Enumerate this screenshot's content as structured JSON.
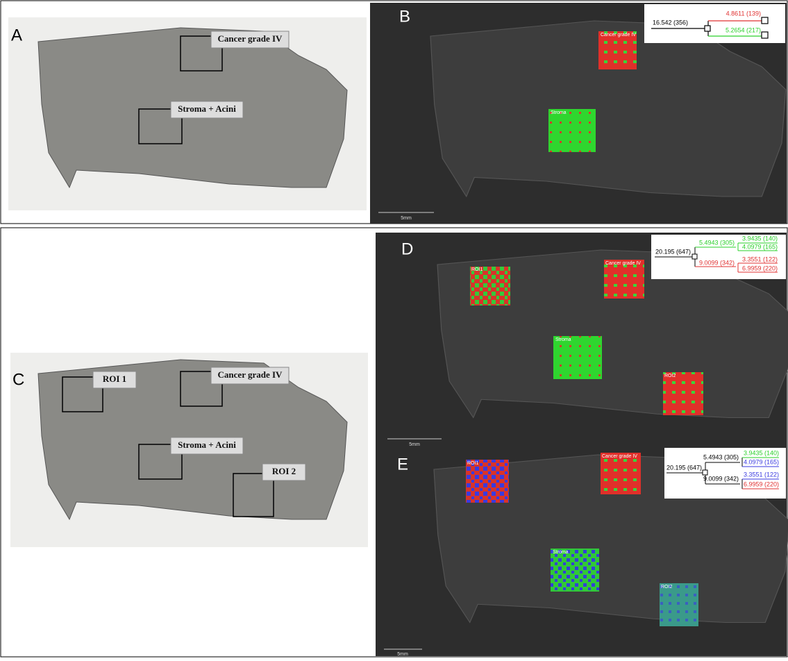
{
  "panel_a": {
    "letter": "A",
    "labels": [
      "Cancer grade IV",
      "Stroma + Acini"
    ]
  },
  "panel_b": {
    "letter": "B",
    "roi_labels": [
      "Cancer grade IV",
      "Stroma"
    ],
    "scale_bar": "5mm",
    "dendrogram": [
      "16.542 (356)",
      "4.8611 (139)",
      "5.2654 (217)"
    ]
  },
  "panel_c": {
    "letter": "C",
    "labels": [
      "ROI 1",
      "Cancer grade IV",
      "Stroma + Acini",
      "ROI 2"
    ]
  },
  "panel_d": {
    "letter": "D",
    "roi_labels": [
      "ROI1",
      "Cancer grade IV",
      "Stroma",
      "ROI2"
    ],
    "scale_bar": "5mm",
    "dendrogram": [
      "20.195 (647)",
      "5.4943 (305)",
      "9.0099 (342)",
      "3.9435 (140)",
      "4.0979 (165)",
      "3.3551 (122)",
      "6.9959 (220)"
    ]
  },
  "panel_e": {
    "letter": "E",
    "roi_labels": [
      "ROI1",
      "Cancer grade IV",
      "Stroma",
      "ROI2"
    ],
    "scale_bar": "5mm",
    "dendrogram": [
      "20.195 (647)",
      "5.4943 (305)",
      "9.0099 (342)",
      "3.9435 (140)",
      "4.0979 (165)",
      "3.3551 (122)",
      "6.9959 (220)"
    ]
  }
}
